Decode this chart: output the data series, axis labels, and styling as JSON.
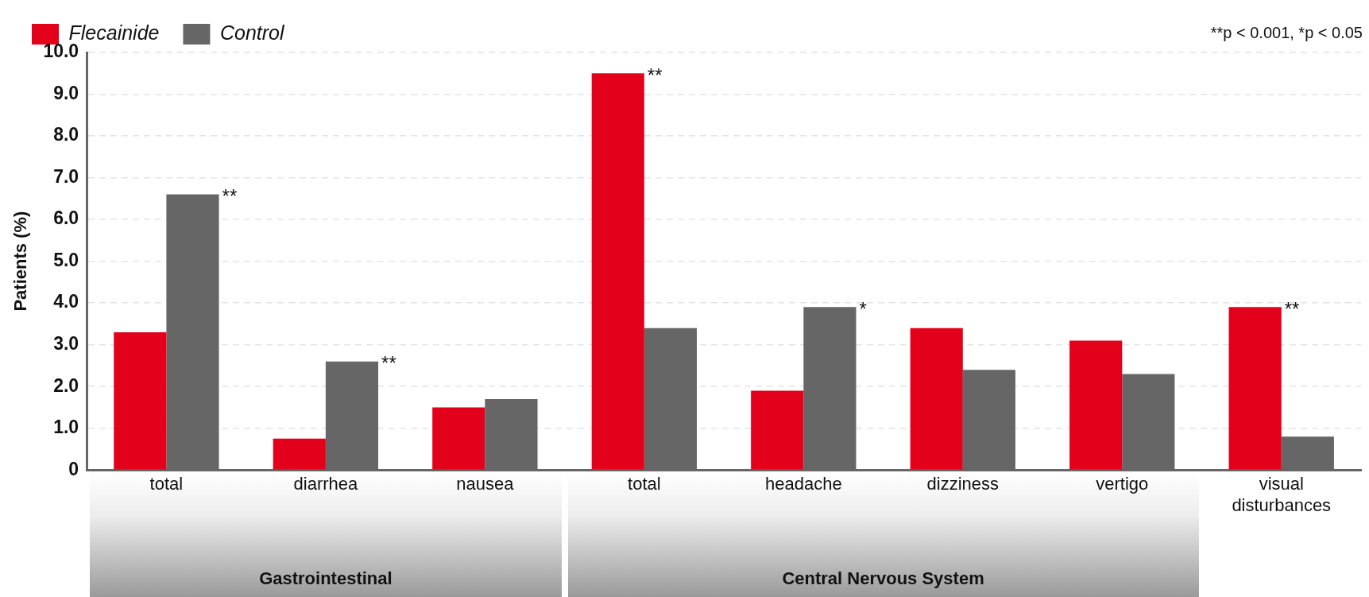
{
  "chart_data": {
    "type": "bar",
    "ylabel": "Patients (%)",
    "categories": [
      "total",
      "diarrhea",
      "nausea",
      "total",
      "headache",
      "dizziness",
      "vertigo",
      "visual disturbances"
    ],
    "series": [
      {
        "name": "Flecainide",
        "color": "#e2001a",
        "values": [
          3.3,
          0.75,
          1.5,
          9.5,
          1.9,
          3.4,
          3.1,
          3.9
        ],
        "value_labels": [
          null,
          null,
          null,
          "**",
          null,
          null,
          null,
          "**"
        ]
      },
      {
        "name": "Control",
        "color": "#666666",
        "values": [
          6.6,
          2.6,
          1.7,
          3.4,
          3.9,
          2.4,
          2.3,
          0.8
        ],
        "value_labels": [
          "**",
          "**",
          null,
          null,
          "*",
          null,
          null,
          null
        ]
      }
    ],
    "ylim": [
      0,
      10
    ],
    "yticks": [
      0,
      {
        "value": 1,
        "label": "1.0"
      },
      {
        "value": 2,
        "label": "2.0"
      },
      {
        "value": 3,
        "label": "3.0"
      },
      {
        "value": 4,
        "label": "4.0"
      },
      {
        "value": 5,
        "label": "5.0"
      },
      {
        "value": 6,
        "label": "6.0"
      },
      {
        "value": 7,
        "label": "7.0"
      },
      {
        "value": 8,
        "label": "8.0"
      },
      {
        "value": 9,
        "label": "9.0"
      },
      {
        "value": 10,
        "label": "10.0"
      }
    ],
    "grid": "y",
    "legend": "top left",
    "annotations": [
      "**p < 0.001, *p < 0.05",
      "Gastrointestinal",
      "Central Nervous System"
    ]
  }
}
